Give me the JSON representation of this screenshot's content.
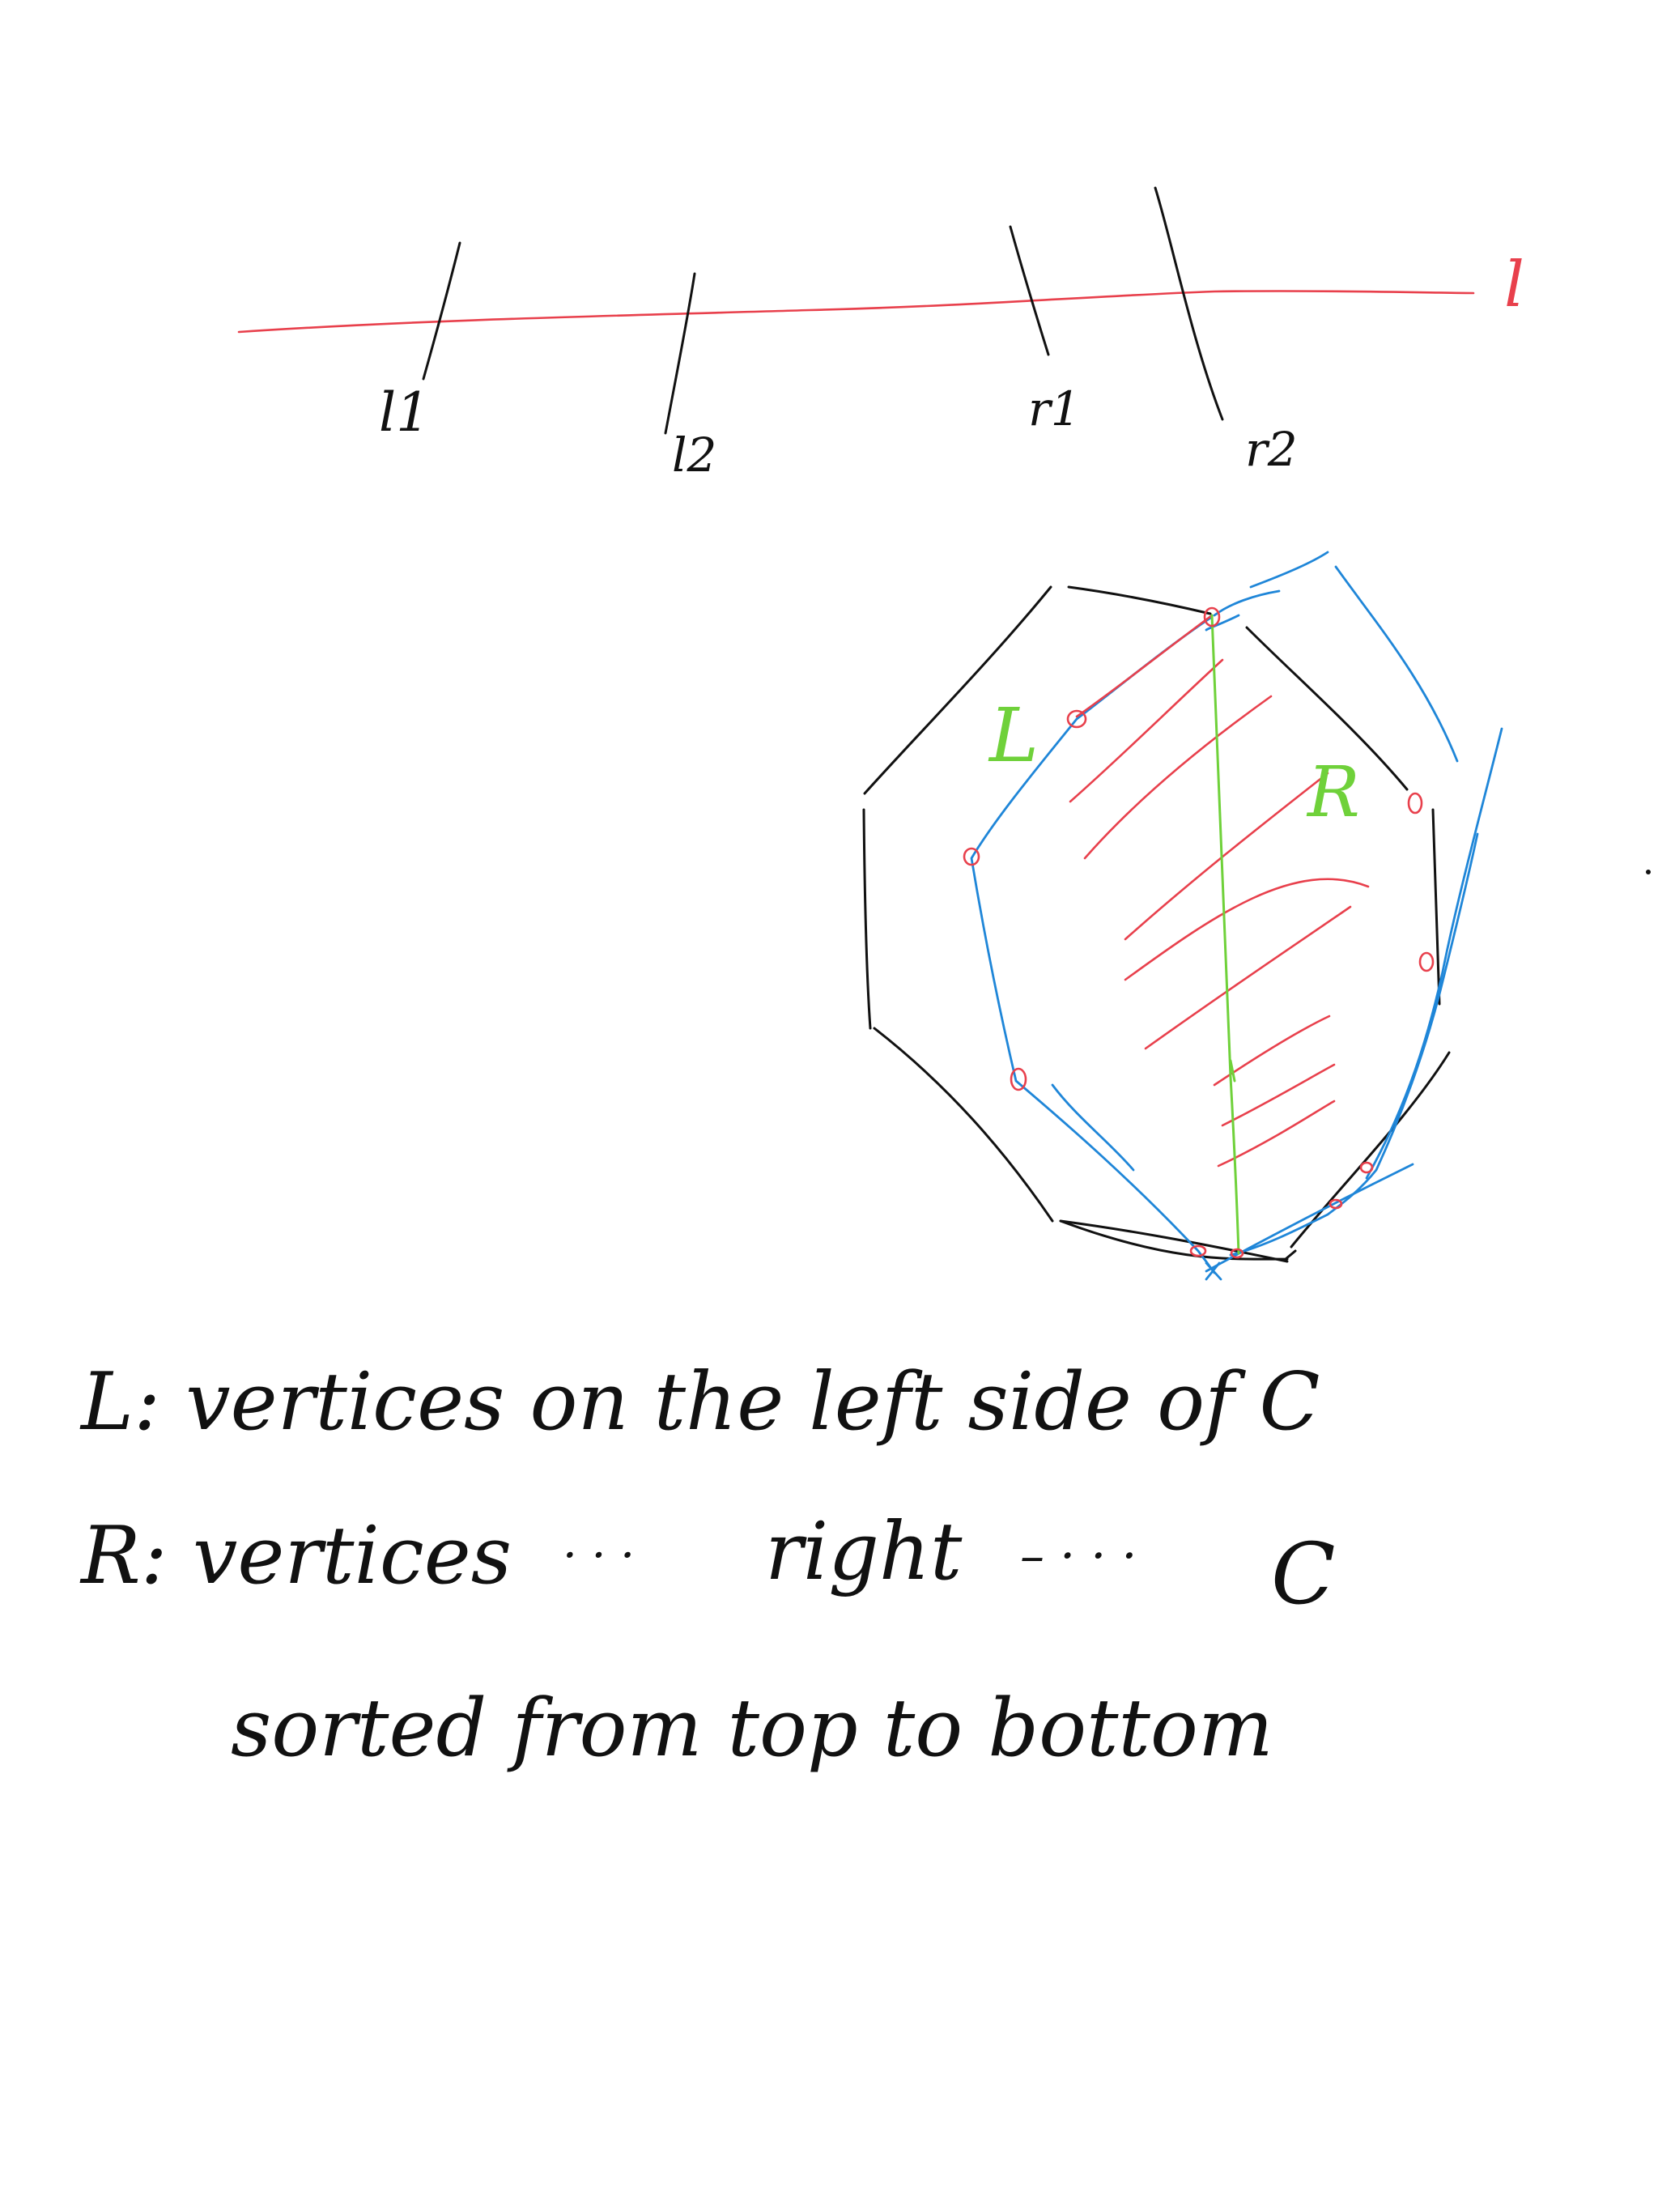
{
  "colors": {
    "ink": "#111111",
    "line_red": "#e8404c",
    "chain_blue": "#1f86d8",
    "divider_green": "#6fd13a"
  },
  "labels": {
    "line_l": "l",
    "l1": "l1",
    "l2": "l2",
    "r1": "r1",
    "r2": "r2",
    "poly_L": "L",
    "poly_R": "R"
  },
  "notes": {
    "line1": "L: vertices on the left side of C",
    "line2_prefix": "R: vertices",
    "line2_dots1": "· · ·",
    "line2_word": "right",
    "line2_dots2": "– · · ·",
    "line2_end": "C",
    "line3": "sorted from top to bottom"
  }
}
